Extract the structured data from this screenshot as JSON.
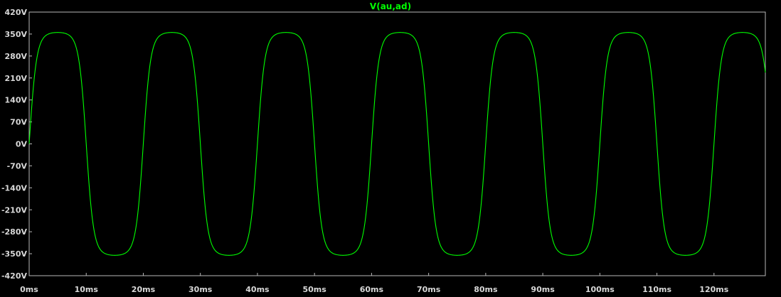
{
  "colors": {
    "background": "#000000",
    "frame": "#b8b8b8",
    "tick_text": "#d8d8d8",
    "trace": "#00ff00",
    "title": "#00ff00"
  },
  "chart_data": {
    "type": "line",
    "title": "V(au,ad)",
    "xlabel": "",
    "ylabel": "",
    "xlim": [
      0,
      129
    ],
    "ylim": [
      -420,
      420
    ],
    "grid": false,
    "x_unit": "ms",
    "y_unit": "V",
    "x_ticks": [
      "0ms",
      "10ms",
      "20ms",
      "30ms",
      "40ms",
      "50ms",
      "60ms",
      "70ms",
      "80ms",
      "90ms",
      "100ms",
      "110ms",
      "120ms"
    ],
    "y_ticks": [
      "420V",
      "350V",
      "280V",
      "210V",
      "140V",
      "70V",
      "0V",
      "-70V",
      "-140V",
      "-210V",
      "-280V",
      "-350V",
      "-420V"
    ],
    "series": [
      {
        "name": "V(au,ad)",
        "waveform": "clipped sine",
        "frequency_hz": 50,
        "period_ms": 20,
        "peak_v": 355,
        "x": [
          0,
          1.25,
          2.5,
          3.75,
          5,
          6.25,
          7.5,
          8.75,
          10,
          11.25,
          12.5,
          13.75,
          15,
          16.25,
          17.5,
          18.75,
          20,
          21.25,
          22.5,
          23.75,
          25,
          26.25,
          27.5,
          28.75,
          30,
          35,
          40,
          45,
          50,
          55,
          60,
          65,
          70,
          75,
          80,
          85,
          90,
          95,
          100,
          105,
          110,
          115,
          120,
          125,
          129
        ],
        "y": [
          0,
          200,
          320,
          350,
          355,
          350,
          320,
          200,
          0,
          -200,
          -320,
          -350,
          -355,
          -350,
          -320,
          -200,
          0,
          200,
          320,
          350,
          355,
          350,
          320,
          200,
          0,
          -355,
          0,
          355,
          0,
          -355,
          0,
          355,
          0,
          -355,
          0,
          355,
          0,
          -355,
          0,
          355,
          0,
          -355,
          0,
          355,
          240
        ]
      }
    ]
  }
}
